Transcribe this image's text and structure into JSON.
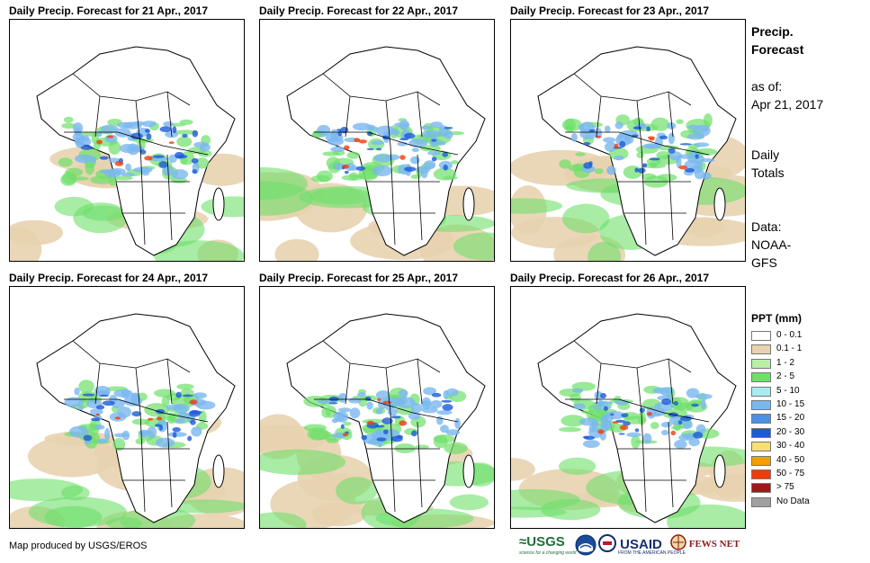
{
  "panels": [
    {
      "title": "Daily Precip. Forecast for 21 Apr., 2017"
    },
    {
      "title": "Daily Precip. Forecast for 22 Apr., 2017"
    },
    {
      "title": "Daily Precip. Forecast for 23 Apr., 2017"
    },
    {
      "title": "Daily Precip. Forecast for 24 Apr., 2017"
    },
    {
      "title": "Daily Precip. Forecast for 25 Apr., 2017"
    },
    {
      "title": "Daily Precip. Forecast for 26 Apr., 2017"
    }
  ],
  "sidebar": {
    "title_line1": "Precip.",
    "title_line2": "Forecast",
    "asof_label": "as of:",
    "asof_date": "Apr 21, 2017",
    "totals_line1": "Daily",
    "totals_line2": "Totals",
    "data_label": "Data:",
    "data_line1": "NOAA-",
    "data_line2": "GFS"
  },
  "legend": {
    "title": "PPT (mm)",
    "items": [
      {
        "label": "0 - 0.1",
        "color": "#ffffff"
      },
      {
        "label": "0.1 - 1",
        "color": "#e8d3b0"
      },
      {
        "label": "1 - 2",
        "color": "#b8f0a8"
      },
      {
        "label": "2 - 5",
        "color": "#6ee06a"
      },
      {
        "label": "5 - 10",
        "color": "#a8ecf2"
      },
      {
        "label": "10 - 15",
        "color": "#7ab8f0"
      },
      {
        "label": "15 - 20",
        "color": "#4a90e8"
      },
      {
        "label": "20 - 30",
        "color": "#1a5ad8"
      },
      {
        "label": "30 - 40",
        "color": "#f8e070"
      },
      {
        "label": "40 - 50",
        "color": "#f0a000"
      },
      {
        "label": "50 - 75",
        "color": "#f03c0a"
      },
      {
        "label": "> 75",
        "color": "#a01818"
      },
      {
        "label": "No Data",
        "color": "#a0a0a0"
      }
    ]
  },
  "footer": {
    "credit": "Map produced by USGS/EROS",
    "logo_usgs": "≈USGS",
    "logo_usgs_tag": "science for a changing world",
    "logo_usaid": "USAID",
    "logo_usaid_tag": "FROM THE AMERICAN PEOPLE",
    "logo_fews": "FEWS NET"
  }
}
